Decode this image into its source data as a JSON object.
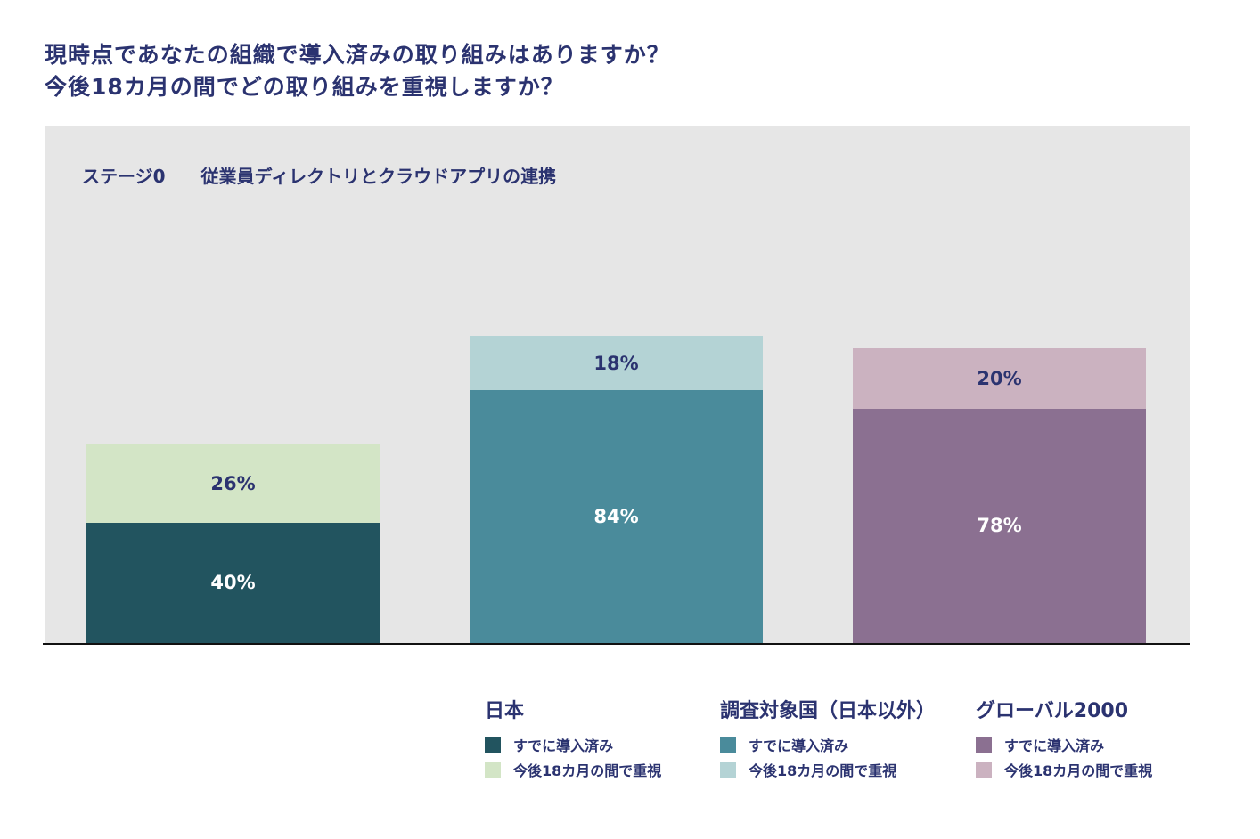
{
  "title_lines": [
    "現時点であなたの組織で導入済みの取り組みはありますか？",
    "今後18カ月の間でどの取り組みを重視しますか？"
  ],
  "chart_data": {
    "type": "bar",
    "stacked": true,
    "title": "現時点であなたの組織で導入済みの取り組みはありますか？ 今後18カ月の間でどの取り組みを重視しますか？",
    "subtitle_stage": "ステージ0",
    "subtitle_text": "従業員ディレクトリとクラウドアプリの連携",
    "categories": [
      "日本",
      "調査対象国（日本以外）",
      "グローバル2000"
    ],
    "series": [
      {
        "name": "すでに導入済み",
        "values": [
          40,
          84,
          78
        ],
        "labels": [
          "40%",
          "84%",
          "78%"
        ],
        "colors": [
          "#22545f",
          "#4a8b9b",
          "#8b7091"
        ],
        "label_color": "#ffffff"
      },
      {
        "name": "今後18カ月の間で重視",
        "values": [
          26,
          18,
          20
        ],
        "labels": [
          "26%",
          "18%",
          "20%"
        ],
        "colors": [
          "#d3e5c6",
          "#b4d3d5",
          "#cbb2c0"
        ],
        "label_color": "#2b3370"
      }
    ],
    "ylim": [
      0,
      172
    ],
    "grid": false,
    "legend_position": "bottom-right"
  }
}
